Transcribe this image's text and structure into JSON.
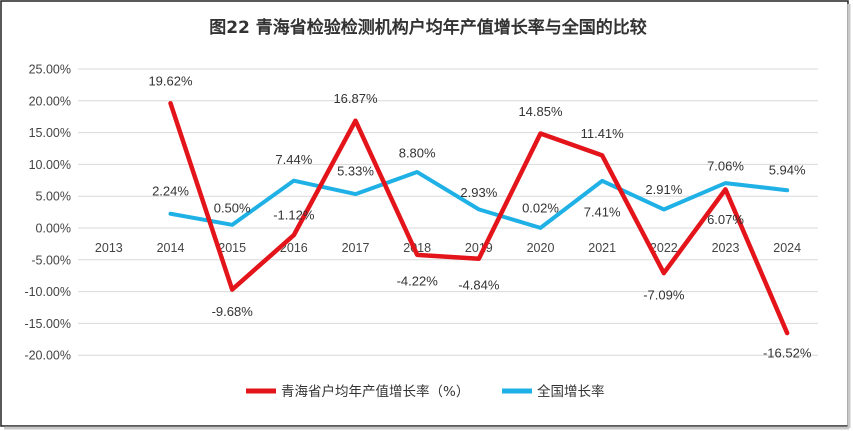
{
  "chart_data": {
    "type": "line",
    "title": "图22  青海省检验检测机构户均年产值增长率与全国的比较",
    "categories": [
      "2013",
      "2014",
      "2015",
      "2016",
      "2017",
      "2018",
      "2019",
      "2020",
      "2021",
      "2022",
      "2023",
      "2024"
    ],
    "ylim": [
      -20,
      25
    ],
    "ytick_labels": [
      "25.00%",
      "20.00%",
      "15.00%",
      "10.00%",
      "5.00%",
      "0.00%",
      "-5.00%",
      "-10.00%",
      "-15.00%",
      "-20.00%"
    ],
    "series": [
      {
        "name": "青海省户均年产值增长率（%）",
        "color": "#e3151b",
        "values": [
          null,
          19.62,
          -9.68,
          -1.12,
          16.87,
          -4.22,
          -4.84,
          14.85,
          11.41,
          -7.09,
          6.07,
          -16.52
        ],
        "labels": [
          "",
          "19.62%",
          "-9.68%",
          "-1.12%",
          "16.87%",
          "-4.22%",
          "-4.84%",
          "14.85%",
          "11.41%",
          "-7.09%",
          "6.07%",
          "-16.52%"
        ]
      },
      {
        "name": "全国增长率",
        "color": "#1fb1e6",
        "values": [
          null,
          2.24,
          0.5,
          7.44,
          5.33,
          8.8,
          2.93,
          0.02,
          7.41,
          2.91,
          7.06,
          5.94
        ],
        "labels": [
          "",
          "2.24%",
          "0.50%",
          "7.44%",
          "5.33%",
          "8.80%",
          "2.93%",
          "0.02%",
          "7.41%",
          "2.91%",
          "7.06%",
          "5.94%"
        ]
      }
    ],
    "legend_position": "bottom",
    "grid": true
  }
}
